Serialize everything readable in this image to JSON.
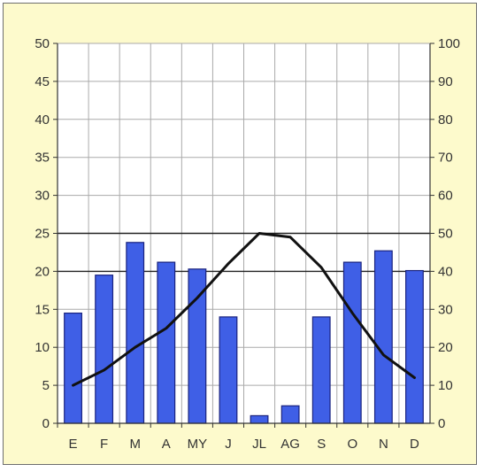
{
  "chart_data": {
    "type": "bar",
    "categories": [
      "E",
      "F",
      "M",
      "A",
      "MY",
      "J",
      "JL",
      "AG",
      "S",
      "O",
      "N",
      "D"
    ],
    "series": [
      {
        "type": "bar",
        "axis": "left",
        "values": [
          14.5,
          19.5,
          23.8,
          21.2,
          20.3,
          14,
          1,
          2.3,
          14,
          21.2,
          22.7,
          20.1
        ]
      },
      {
        "type": "line",
        "axis": "right",
        "values": [
          10,
          14,
          20,
          25,
          33,
          42,
          50,
          49,
          41,
          29,
          18,
          12
        ]
      }
    ],
    "y_left": {
      "min": 0,
      "max": 50,
      "step": 5
    },
    "y_right": {
      "min": 0,
      "max": 100,
      "step": 10
    },
    "grid": true,
    "colors": {
      "bar_fill": "#3f5fe6",
      "bar_stroke": "#1a237e",
      "line": "#111111",
      "panel_background": "#fdfacc",
      "plot_background": "#ffffff",
      "grid": "#aaaaaa"
    }
  }
}
